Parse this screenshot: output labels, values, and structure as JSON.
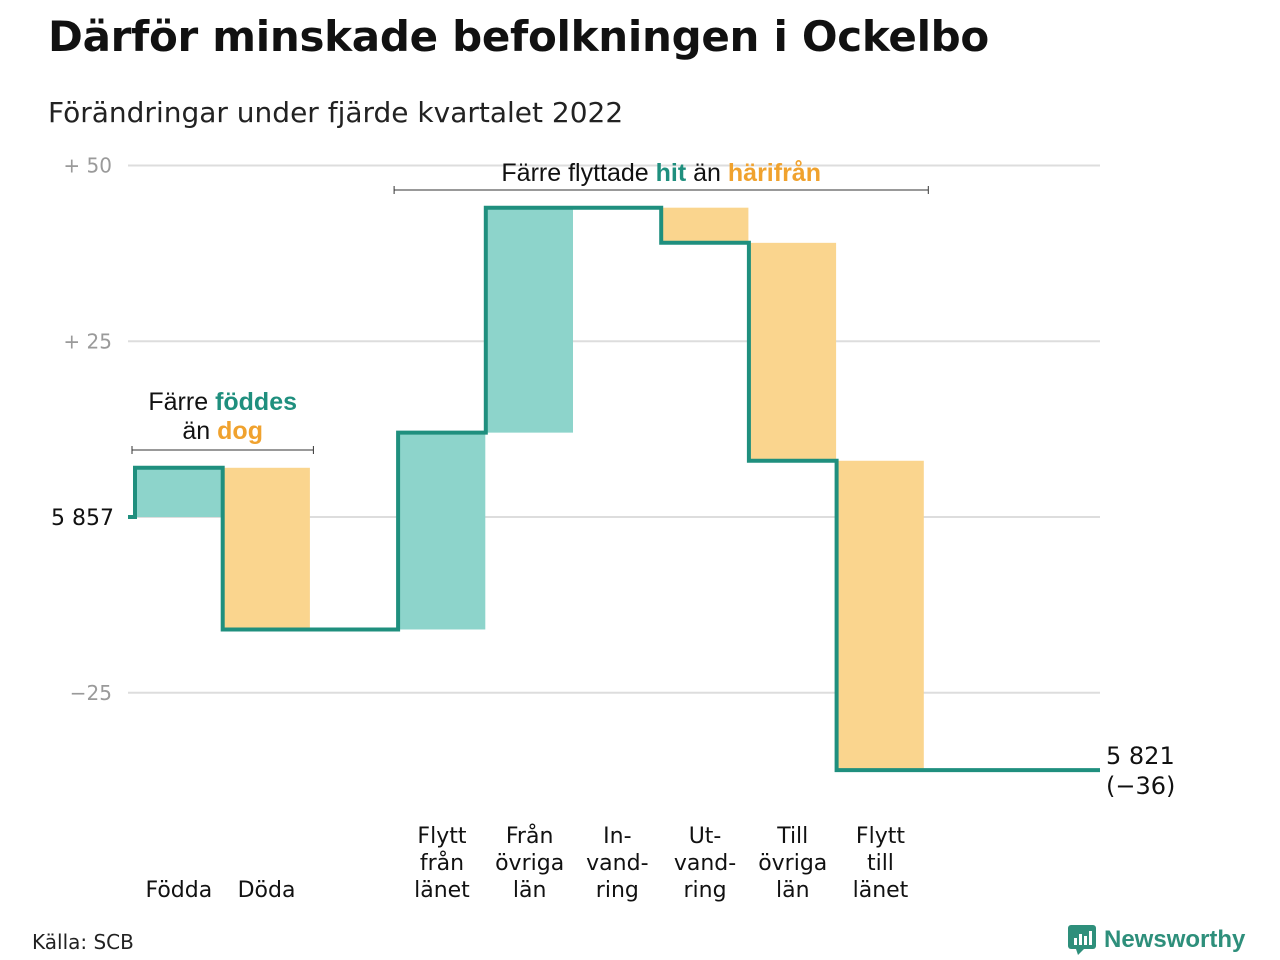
{
  "title": "Därför minskade befolkningen i Ockelbo",
  "subtitle": "Förändringar under fjärde kvartalet 2022",
  "source": "Källa: SCB",
  "brand": "Newsworthy",
  "colors": {
    "positive": "#8dd4cb",
    "negative": "#fad58e",
    "line": "#1f8f7e",
    "positive_text": "#1f8f7e",
    "negative_text": "#f0a22e",
    "grid": "#dddddd",
    "tick": "#9a9a9a"
  },
  "annotations": {
    "births_deaths": {
      "line1_pre": "Färre ",
      "line1_hl": "föddes",
      "line2_pre": "än ",
      "line2_hl": "dog"
    },
    "migration": {
      "pre": "Färre flyttade ",
      "hl1": "hit",
      "mid": " än ",
      "hl2": "härifrån"
    }
  },
  "chart_data": {
    "type": "waterfall",
    "start_value": 5857,
    "start_label": "5 857",
    "end_label": "5 821",
    "end_change_label": "(−36)",
    "y_ticks": [
      {
        "value": 50,
        "label": "+ 50"
      },
      {
        "value": 25,
        "label": "+ 25"
      },
      {
        "value": 0,
        "label": ""
      },
      {
        "value": -25,
        "label": "−25"
      }
    ],
    "ylim": [
      -36,
      50
    ],
    "grid": true,
    "categories": [
      {
        "label": [
          "Födda"
        ],
        "change": 7
      },
      {
        "label": [
          "Döda"
        ],
        "change": -23
      },
      {
        "label": [
          ""
        ],
        "change": 0
      },
      {
        "label": [
          "Flytt",
          "från",
          "länet"
        ],
        "change": 28
      },
      {
        "label": [
          "Från",
          "övriga",
          "län"
        ],
        "change": 32
      },
      {
        "label": [
          "In-",
          "vand-",
          "ring"
        ],
        "change": 0
      },
      {
        "label": [
          "Ut-",
          "vand-",
          "ring"
        ],
        "change": -5
      },
      {
        "label": [
          "Till",
          "övriga",
          "län"
        ],
        "change": -31
      },
      {
        "label": [
          "Flytt",
          "till",
          "länet"
        ],
        "change": -44
      }
    ]
  }
}
